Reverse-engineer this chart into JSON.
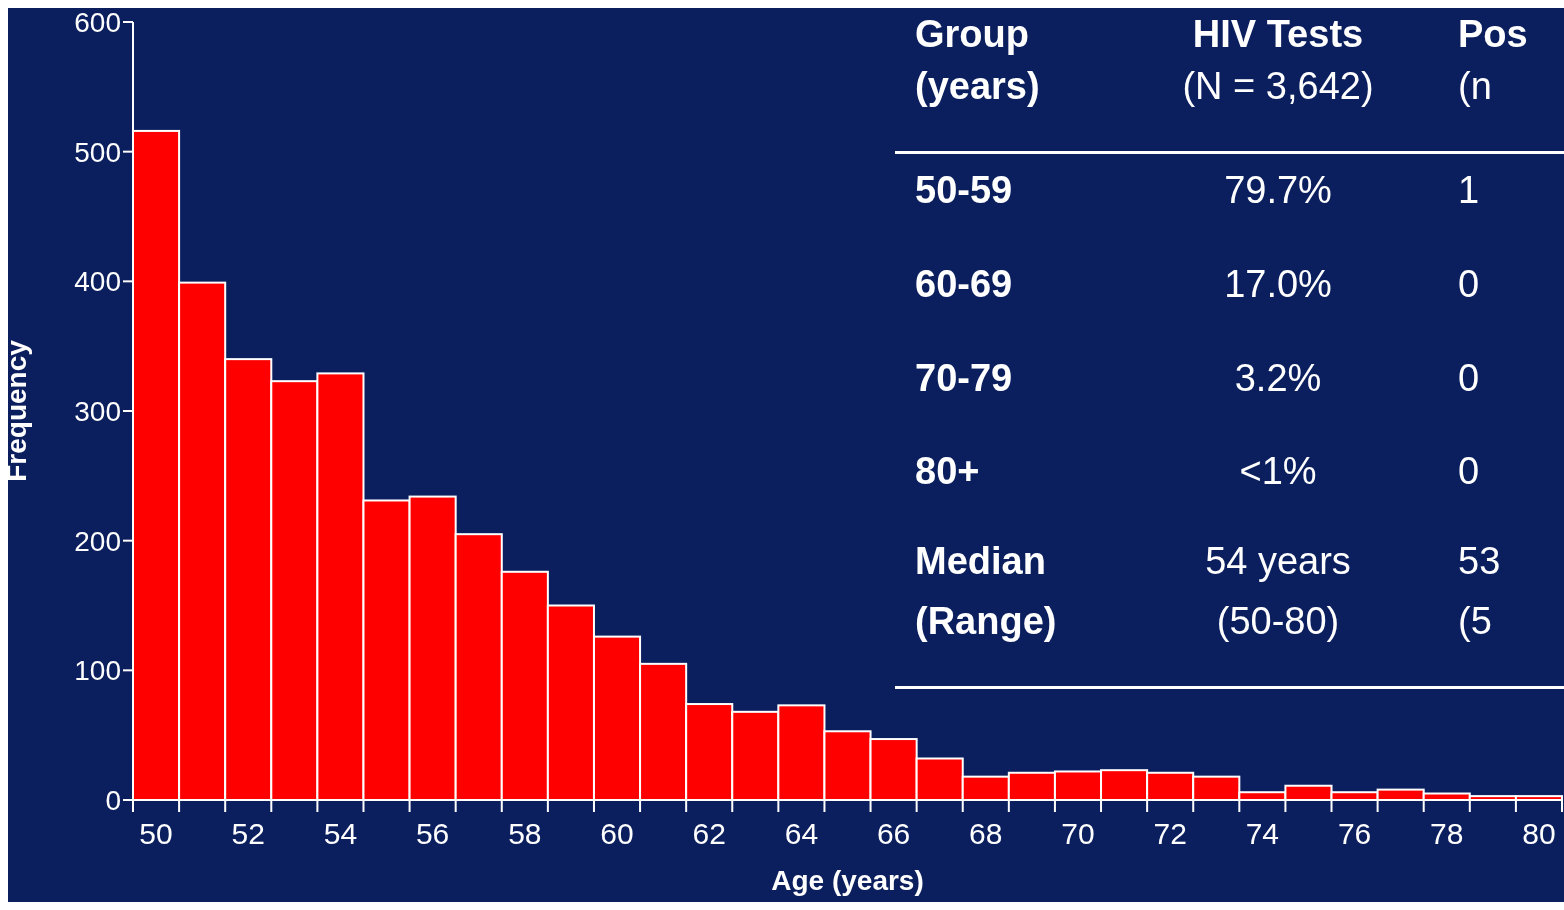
{
  "chart_data": {
    "type": "histogram",
    "xlabel": "Age (years)",
    "ylabel": "Frequency",
    "color": "#ff0000",
    "bins": [
      49.5,
      50.5,
      51.5,
      52.5,
      53.5,
      54.5,
      55.5,
      56.5,
      57.5,
      58.5,
      59.5,
      60.5,
      61.5,
      62.5,
      63.5,
      64.5,
      65.5,
      66.5,
      67.5,
      68.5,
      69.5,
      70.5,
      71.5,
      72.5,
      73.5,
      74.5,
      75.5,
      76.5,
      77.5,
      78.5,
      79.5,
      80.5
    ],
    "values": [
      516,
      399,
      340,
      323,
      329,
      231,
      234,
      205,
      176,
      150,
      126,
      105,
      74,
      68,
      73,
      53,
      47,
      32,
      18,
      21,
      22,
      23,
      21,
      18,
      6,
      11,
      6,
      8,
      5,
      3,
      3
    ],
    "xlim": [
      49.5,
      80.5
    ],
    "ylim": [
      0,
      600
    ],
    "yticks": [
      0,
      100,
      200,
      300,
      400,
      500,
      600
    ],
    "xticks": [
      50,
      52,
      54,
      56,
      58,
      60,
      62,
      64,
      66,
      68,
      70,
      72,
      74,
      76,
      78,
      80
    ],
    "annotations": [
      "Group",
      "HIV Tests",
      "Pos",
      "(years)",
      "(N = 3,642)",
      "(n",
      "50-59",
      "79.7%",
      "1",
      "60-69",
      "17.0%",
      "0",
      "70-79",
      "3.2%",
      "0",
      "80+",
      "<1%",
      "0",
      "Median",
      "54 years",
      "53",
      "(Range)",
      "(50-80)",
      "(5"
    ]
  }
}
